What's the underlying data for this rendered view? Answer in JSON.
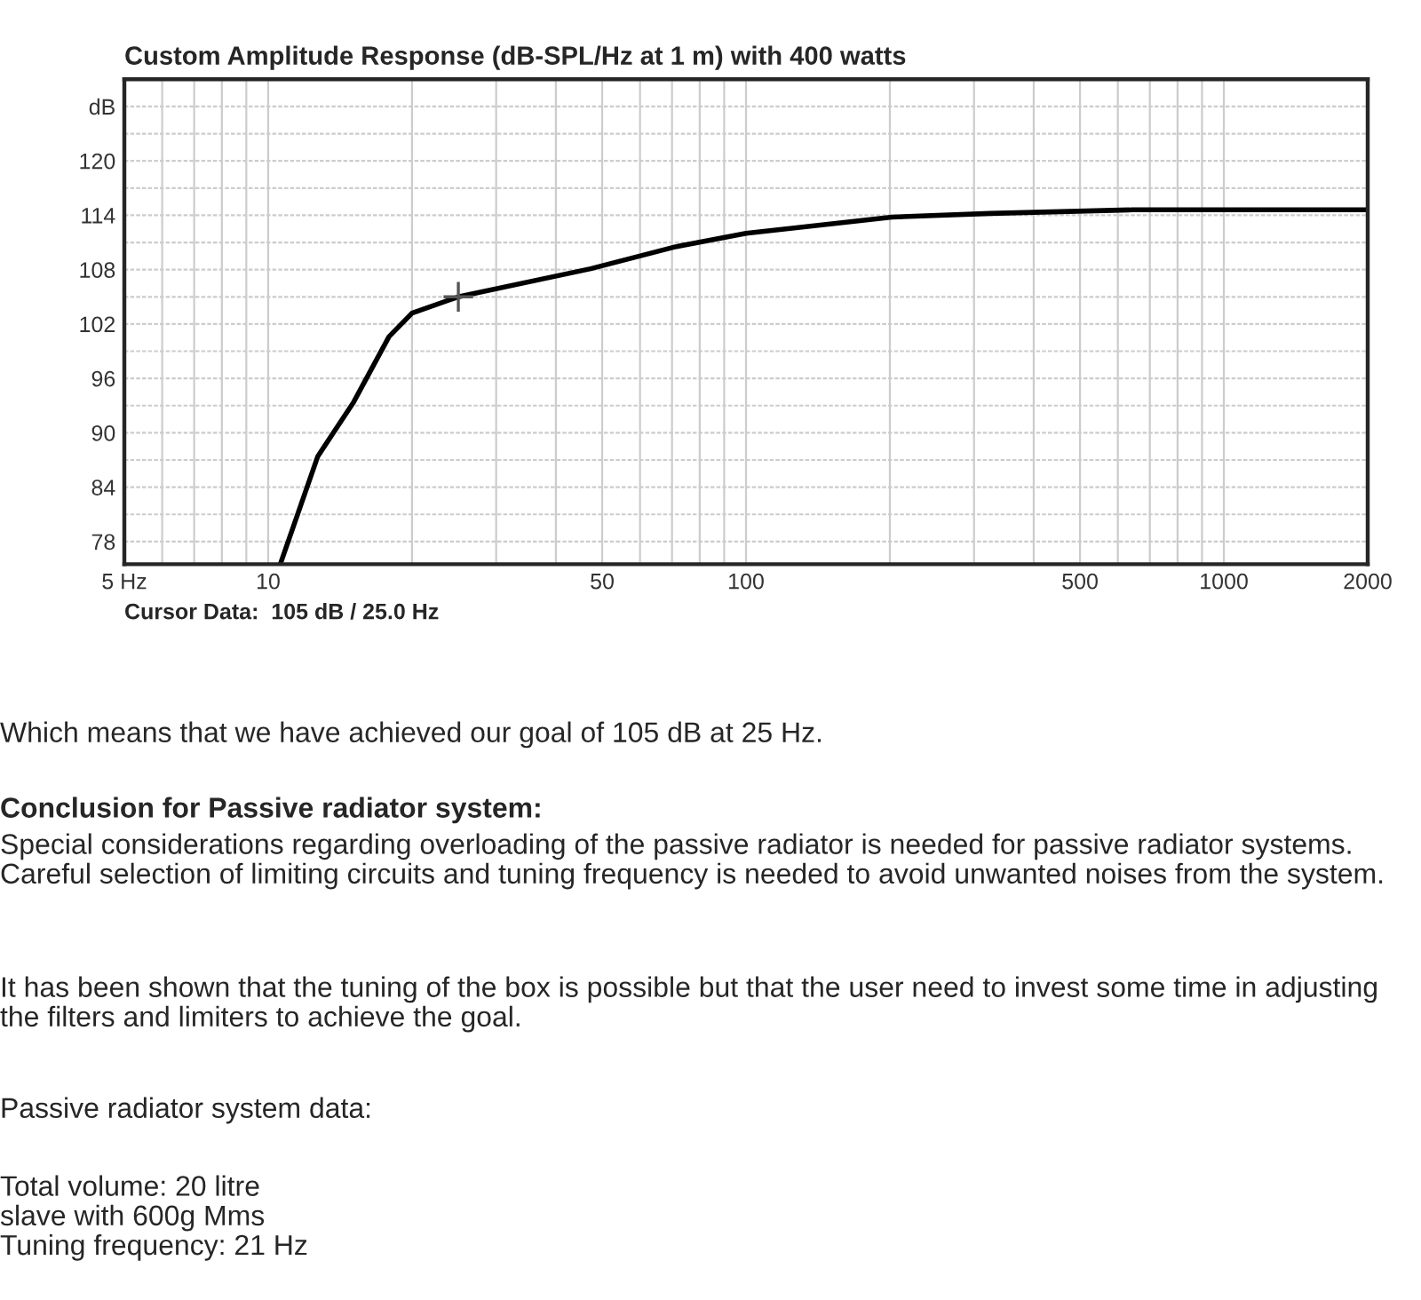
{
  "chart_data": {
    "type": "line",
    "title": "Custom Amplitude Response (dB-SPL/Hz at 1 m) with 400 watts",
    "x": [
      10.6,
      12.7,
      15.1,
      17.9,
      20.0,
      25.0,
      47.3,
      70.9,
      100,
      202,
      324,
      644,
      2000
    ],
    "series": [
      {
        "color": "#000000",
        "values": [
          75.5,
          87.4,
          93.4,
          100.6,
          103.2,
          105,
          108.1,
          110.5,
          112.0,
          113.8,
          114.2,
          114.6,
          114.6
        ]
      },
      {
        "type": "scatter",
        "marker": "cross",
        "color": "#555555",
        "x": [
          25.0
        ],
        "values": [
          105
        ]
      }
    ],
    "log": "x",
    "xlim": [
      5,
      2000
    ],
    "ylim": [
      75.5,
      129
    ],
    "xticks": [
      {
        "value": 5,
        "label": "5 Hz"
      },
      10,
      50,
      100,
      500,
      1000,
      2000
    ],
    "yticks": [
      78,
      84,
      90,
      96,
      102,
      108,
      114,
      120,
      {
        "value": 126,
        "label": "dB"
      }
    ],
    "grid": true,
    "marker": "none",
    "line_style": "solid",
    "annotations": [
      "Cursor Data:  105 dB / 25.0 Hz",
      "Which means that we have achieved our goal of 105 dB at 25 Hz.",
      "Conclusion for Passive radiator system:",
      "Special considerations regarding overloading of the passive radiator is needed for passive radiator systems. Careful selection of limiting circuits and tuning frequency is needed to avoid unwanted noises from the system.",
      "It has been shown that the tuning of the box is possible but that the user need to invest some time in adjusting the filters and limiters to achieve the goal.",
      "Passive radiator system data:",
      "Total volume: 20 litre\nslave with 600g Mms\nTuning frequency: 21 Hz"
    ]
  }
}
